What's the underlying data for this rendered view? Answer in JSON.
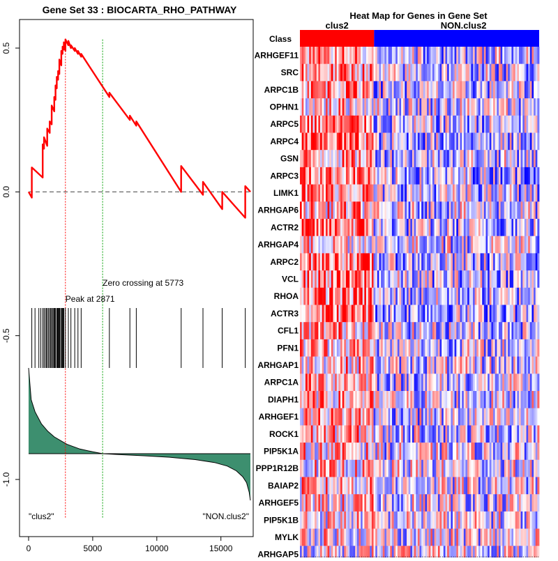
{
  "chart_data": [
    {
      "type": "line",
      "title": "Gene Set  33 : BIOCARTA_RHO_PATHWAY",
      "xlim": [
        0,
        17300
      ],
      "ylim": [
        -1.15,
        0.6
      ],
      "xticks": [
        0,
        5000,
        10000,
        15000
      ],
      "xtick_labels": [
        "0",
        "5000",
        "10000",
        "15000"
      ],
      "yticks": [
        0.5,
        0.0,
        -0.5,
        -1.0
      ],
      "ytick_labels": [
        "0.5",
        "0.0",
        "-0.5",
        "-1.0"
      ],
      "peak_label": "Peak at 2871",
      "peak_rank": 2871,
      "zero_cross_label": "Zero crossing at 5773",
      "zero_cross_rank": 5773,
      "left_class_label": "\"clus2\"",
      "right_class_label": "\"NON.clus2\"",
      "enrichment_curve": {
        "x": [
          0,
          250,
          250,
          1100,
          1100,
          1200,
          1200,
          1450,
          1450,
          1650,
          1650,
          1800,
          1800,
          2000,
          2000,
          2100,
          2100,
          2200,
          2200,
          2300,
          2300,
          2400,
          2400,
          2550,
          2550,
          2650,
          2650,
          2750,
          2750,
          2871,
          2871,
          3100,
          3100,
          3300,
          3300,
          3600,
          3600,
          3850,
          3850,
          4100,
          4100,
          6300,
          6300,
          7900,
          7900,
          8400,
          8400,
          11900,
          11900,
          13600,
          13600,
          15100,
          15100,
          16900,
          16900,
          17300
        ],
        "y": [
          0.0,
          -0.02,
          0.085,
          0.05,
          0.165,
          0.15,
          0.19,
          0.16,
          0.22,
          0.205,
          0.245,
          0.235,
          0.3,
          0.28,
          0.33,
          0.32,
          0.37,
          0.36,
          0.4,
          0.39,
          0.42,
          0.41,
          0.46,
          0.44,
          0.49,
          0.48,
          0.505,
          0.495,
          0.52,
          0.49,
          0.53,
          0.51,
          0.525,
          0.5,
          0.51,
          0.49,
          0.5,
          0.48,
          0.49,
          0.47,
          0.48,
          0.33,
          0.345,
          0.25,
          0.265,
          0.23,
          0.245,
          0.0,
          0.09,
          -0.01,
          0.035,
          -0.06,
          0.0,
          -0.09,
          0.02,
          0.0
        ]
      },
      "hit_ranks": [
        250,
        500,
        800,
        950,
        1100,
        1200,
        1300,
        1400,
        1450,
        1550,
        1650,
        1700,
        1800,
        1850,
        1950,
        2000,
        2050,
        2100,
        2200,
        2250,
        2300,
        2350,
        2400,
        2450,
        2550,
        2600,
        2650,
        2700,
        2750,
        2871,
        3100,
        3300,
        3600,
        3850,
        4100,
        6300,
        7900,
        8400,
        11900,
        13600,
        15100,
        16900
      ],
      "ranked_metric": {
        "x": [
          0,
          200,
          500,
          1000,
          1500,
          2000,
          3000,
          4000,
          5000,
          5773,
          7000,
          9000,
          11000,
          13000,
          14500,
          15500,
          16200,
          16700,
          17000,
          17200,
          17300
        ],
        "y": [
          0.92,
          0.58,
          0.45,
          0.32,
          0.24,
          0.18,
          0.1,
          0.05,
          0.02,
          0.0,
          -0.03,
          -0.07,
          -0.12,
          -0.2,
          -0.3,
          -0.42,
          -0.58,
          -0.78,
          -0.98,
          -1.3,
          -1.58
        ]
      },
      "colors": {
        "curve": "#ff0000",
        "fill": "#3d8f6f",
        "peak_line": "#ff0000",
        "zero_line": "#00a000"
      }
    },
    {
      "type": "heatmap",
      "title": "Heat Map for Genes in Gene Set",
      "class_row_label": "Class",
      "class_names": [
        "clus2",
        "NON.clus2"
      ],
      "class_colors": [
        "#ff0000",
        "#0000ff"
      ],
      "class_split_fraction": 0.31,
      "genes": [
        "ARHGEF11",
        "SRC",
        "ARPC1B",
        "OPHN1",
        "ARPC5",
        "ARPC4",
        "GSN",
        "ARPC3",
        "LIMK1",
        "ARHGAP6",
        "ACTR2",
        "ARHGAP4",
        "ARPC2",
        "VCL",
        "RHOA",
        "ACTR3",
        "CFL1",
        "PFN1",
        "ARHGAP1",
        "ARPC1A",
        "DIAPH1",
        "ARHGEF1",
        "ROCK1",
        "PIP5K1A",
        "PPP1R12B",
        "BAIAP2",
        "ARHGEF5",
        "PIP5K1B",
        "MYLK",
        "ARHGAP5"
      ],
      "n_samples": 130,
      "row_trends": [
        0.45,
        0.4,
        0.5,
        0.2,
        0.5,
        0.55,
        0.3,
        0.55,
        0.45,
        0.3,
        0.5,
        0.2,
        0.55,
        0.45,
        0.5,
        0.55,
        0.35,
        0.3,
        0.25,
        0.35,
        0.25,
        0.35,
        0.3,
        0.2,
        0.15,
        0.2,
        0.15,
        0.1,
        0.1,
        0.05
      ]
    }
  ]
}
